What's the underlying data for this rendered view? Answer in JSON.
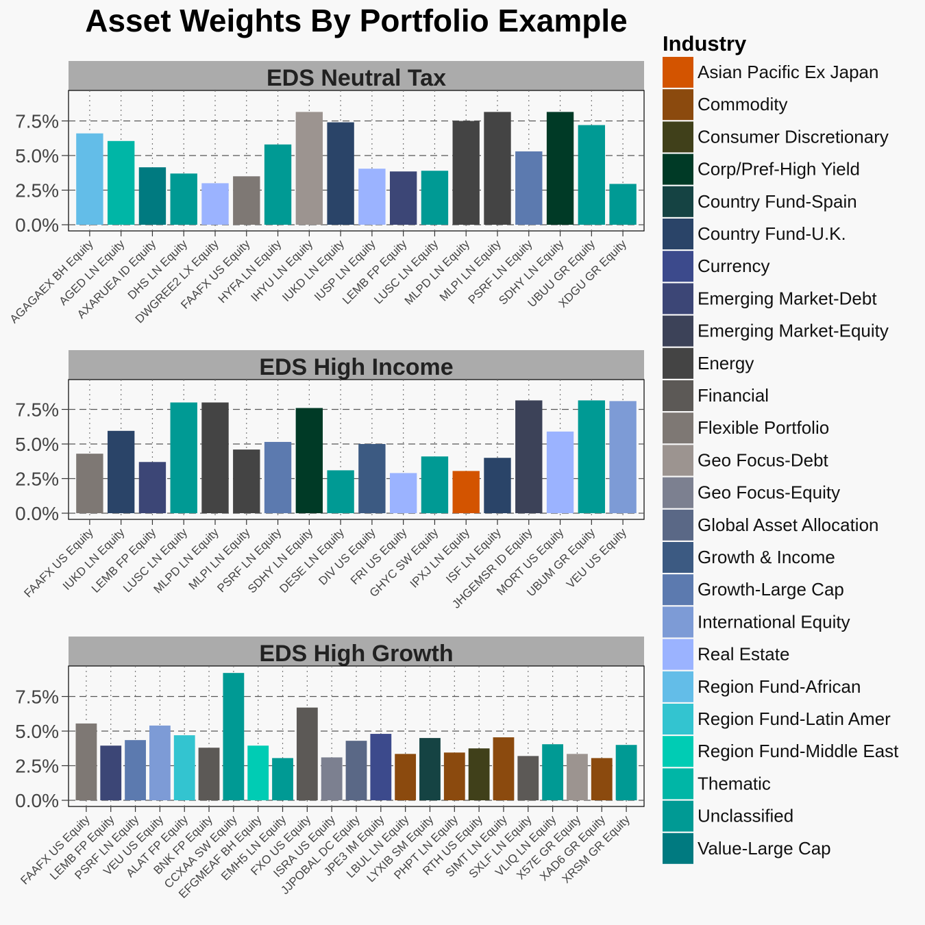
{
  "colors": {
    "Asian Pacific Ex Japan": "#d35400",
    "Commodity": "#8b4a0e",
    "Consumer Discretionary": "#40401a",
    "Corp/Pref-High Yield": "#003a26",
    "Country Fund-Spain": "#154343",
    "Country Fund-U.K.": "#2a4468",
    "Currency": "#3c4a8c",
    "Emerging Market-Debt": "#3c4676",
    "Emerging Market-Equity": "#3c4258",
    "Energy": "#444444",
    "Financial": "#5c5956",
    "Flexible Portfolio": "#7e7874",
    "Geo Focus-Debt": "#9c9490",
    "Geo Focus-Equity": "#7c8090",
    "Global Asset Allocation": "#5a6886",
    "Growth & Income": "#3c5a82",
    "Growth-Large Cap": "#5c7aaf",
    "International Equity": "#7d9bd6",
    "Real Estate": "#9bb3ff",
    "Region Fund-African": "#63bde8",
    "Region Fund-Latin Amer": "#33c4d0",
    "Region Fund-Middle East": "#00ccb4",
    "Thematic": "#00b6a6",
    "Unclassified": "#009a94",
    "Value-Large Cap": "#007a80"
  },
  "chart_data": {
    "type": "bar",
    "title": "Asset Weights By Portfolio Example",
    "ylim": [
      0,
      9.5
    ],
    "yticks": [
      0,
      2.5,
      5,
      7.5
    ],
    "ytick_labels": [
      "0.0%",
      "2.5%",
      "5.0%",
      "7.5%"
    ],
    "legend": {
      "title": "Industry",
      "position": "right",
      "items": [
        "Asian Pacific Ex Japan",
        "Commodity",
        "Consumer Discretionary",
        "Corp/Pref-High Yield",
        "Country Fund-Spain",
        "Country Fund-U.K.",
        "Currency",
        "Emerging Market-Debt",
        "Emerging Market-Equity",
        "Energy",
        "Financial",
        "Flexible Portfolio",
        "Geo Focus-Debt",
        "Geo Focus-Equity",
        "Global Asset Allocation",
        "Growth & Income",
        "Growth-Large Cap",
        "International Equity",
        "Real Estate",
        "Region Fund-African",
        "Region Fund-Latin Amer",
        "Region Fund-Middle East",
        "Thematic",
        "Unclassified",
        "Value-Large Cap"
      ]
    },
    "panels": [
      {
        "title": "EDS Neutral Tax",
        "categories": [
          "AGAGAEX BH Equity",
          "AGED LN Equity",
          "AXARUEA ID Equity",
          "DHS LN Equity",
          "DWGREE2 LX Equity",
          "FAAFX US Equity",
          "HYFA LN Equity",
          "IHYU LN Equity",
          "IUKD LN Equity",
          "IUSP LN Equity",
          "LEMB FP Equity",
          "LUSC LN Equity",
          "MLPD LN Equity",
          "MLPI LN Equity",
          "PSRF LN Equity",
          "SDHY LN Equity",
          "UBUU GR Equity",
          "XDGU GR Equity"
        ],
        "values": [
          6.6,
          6.05,
          4.15,
          3.7,
          3.0,
          3.5,
          5.8,
          8.15,
          7.4,
          4.05,
          3.85,
          3.9,
          7.5,
          8.15,
          5.3,
          8.15,
          7.2,
          2.95
        ],
        "industries": [
          "Region Fund-African",
          "Thematic",
          "Value-Large Cap",
          "Unclassified",
          "Real Estate",
          "Flexible Portfolio",
          "Unclassified",
          "Geo Focus-Debt",
          "Country Fund-U.K.",
          "Real Estate",
          "Emerging Market-Debt",
          "Unclassified",
          "Energy",
          "Energy",
          "Growth-Large Cap",
          "Corp/Pref-High Yield",
          "Unclassified",
          "Unclassified"
        ]
      },
      {
        "title": "EDS High Income",
        "categories": [
          "FAAFX US Equity",
          "IUKD LN Equity",
          "LEMB FP Equity",
          "LUSC LN Equity",
          "MLPD LN Equity",
          "MLPI LN Equity",
          "PSRF LN Equity",
          "SDHY LN Equity",
          "DESE LN Equity",
          "DIV US Equity",
          "FRI US Equity",
          "GHYC SW Equity",
          "IPXJ LN Equity",
          "ISF LN Equity",
          "JHGEMSR ID Equity",
          "MORT US Equity",
          "UBUM GR Equity",
          "VEU US Equity"
        ],
        "values": [
          4.3,
          5.95,
          3.7,
          8.0,
          8.0,
          4.6,
          5.15,
          7.6,
          3.1,
          5.0,
          2.9,
          4.1,
          3.05,
          4.0,
          8.15,
          5.9,
          8.15,
          8.1
        ],
        "industries": [
          "Flexible Portfolio",
          "Country Fund-U.K.",
          "Emerging Market-Debt",
          "Unclassified",
          "Energy",
          "Energy",
          "Growth-Large Cap",
          "Corp/Pref-High Yield",
          "Unclassified",
          "Growth & Income",
          "Real Estate",
          "Unclassified",
          "Asian Pacific Ex Japan",
          "Country Fund-U.K.",
          "Emerging Market-Equity",
          "Real Estate",
          "Unclassified",
          "International Equity"
        ]
      },
      {
        "title": "EDS High Growth",
        "categories": [
          "FAAFX US Equity",
          "LEMB FP Equity",
          "PSRF LN Equity",
          "VEU US Equity",
          "ALAT FP Equity",
          "BNK FP Equity",
          "CCXAA SW Equity",
          "EFGMEAF BH Equity",
          "EMH5 LN Equity",
          "FXO US Equity",
          "ISRA US Equity",
          "JJPOBAL DC Equity",
          "JPE3 IM Equity",
          "LBUL LN Equity",
          "LYXIB SM Equity",
          "PHPT LN Equity",
          "RTH US Equity",
          "SIMT LN Equity",
          "SXLF LN Equity",
          "VLIQ LN Equity",
          "X57E GR Equity",
          "XAD6 GR Equity",
          "XRSM GR Equity"
        ],
        "values": [
          5.55,
          3.95,
          4.35,
          5.4,
          4.7,
          3.8,
          9.2,
          3.95,
          3.05,
          6.7,
          3.1,
          4.3,
          4.8,
          3.35,
          4.5,
          3.45,
          3.75,
          4.55,
          3.2,
          4.05,
          3.35,
          3.05,
          4.0
        ],
        "industries": [
          "Flexible Portfolio",
          "Emerging Market-Debt",
          "Growth-Large Cap",
          "International Equity",
          "Region Fund-Latin Amer",
          "Financial",
          "Unclassified",
          "Region Fund-Middle East",
          "Unclassified",
          "Financial",
          "Geo Focus-Equity",
          "Global Asset Allocation",
          "Currency",
          "Commodity",
          "Country Fund-Spain",
          "Commodity",
          "Consumer Discretionary",
          "Commodity",
          "Financial",
          "Unclassified",
          "Geo Focus-Debt",
          "Commodity",
          "Unclassified"
        ]
      }
    ]
  }
}
